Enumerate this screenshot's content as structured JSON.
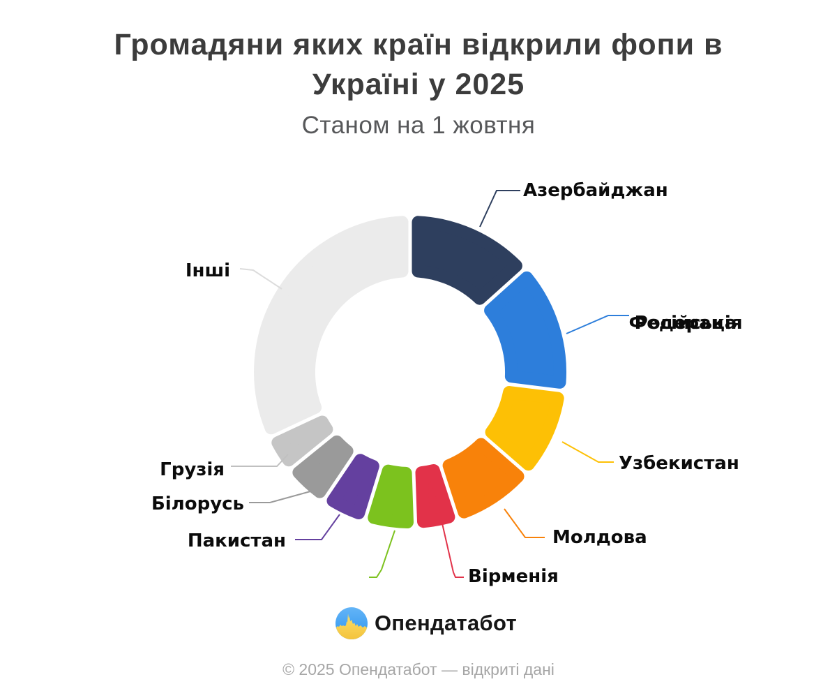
{
  "title": {
    "line1": "Громадяни яких країн відкрили фопи в",
    "line2": "Україні у 2025"
  },
  "subtitle": "Станом на 1 жовтня",
  "chart_data": {
    "type": "pie",
    "variant": "donut",
    "title": "Громадяни яких країн відкрили фопи в Україні у 2025",
    "subtitle": "Станом на 1 жовтня",
    "value_labels_shown": false,
    "note": "shares estimated from arc angles; numeric values are not printed on the chart",
    "legend_position": "callout-labels",
    "segments": [
      {
        "label": "Азербайджан",
        "color": "#2e3f5e",
        "start_deg": 0,
        "end_deg": 48,
        "pct_est": 13.3
      },
      {
        "label": "Російська Федерація",
        "color": "#2d7edb",
        "start_deg": 48,
        "end_deg": 97,
        "pct_est": 13.6
      },
      {
        "label": "Узбекистан",
        "color": "#fdc005",
        "start_deg": 97,
        "end_deg": 131,
        "pct_est": 9.4
      },
      {
        "label": "Молдова",
        "color": "#f8820a",
        "start_deg": 131,
        "end_deg": 162,
        "pct_est": 8.6
      },
      {
        "label": "Вірменія",
        "color": "#e23249",
        "start_deg": 162,
        "end_deg": 178,
        "pct_est": 4.4
      },
      {
        "label": "",
        "color": "#7cc21e",
        "start_deg": 178,
        "end_deg": 197,
        "pct_est": 5.3
      },
      {
        "label": "Пакистан",
        "color": "#64409f",
        "start_deg": 197,
        "end_deg": 214,
        "pct_est": 4.7
      },
      {
        "label": "Білорусь",
        "color": "#9a9a9a",
        "start_deg": 214,
        "end_deg": 231,
        "pct_est": 4.7
      },
      {
        "label": "Грузія",
        "color": "#c5c5c5",
        "start_deg": 231,
        "end_deg": 245,
        "pct_est": 3.9
      },
      {
        "label": "Інші",
        "color": "#ebebeb",
        "start_deg": 245,
        "end_deg": 360,
        "pct_est": 31.9
      }
    ]
  },
  "labels": {
    "russia_overlap": {
      "line1": "Російська",
      "line2": "Федерація"
    }
  },
  "logo": {
    "text": "Опендатабот",
    "icon_colors": {
      "blue": "#4aa4f2",
      "yellow": "#fbd052"
    }
  },
  "footer": "© 2025 Опендатабот — відкриті дані"
}
